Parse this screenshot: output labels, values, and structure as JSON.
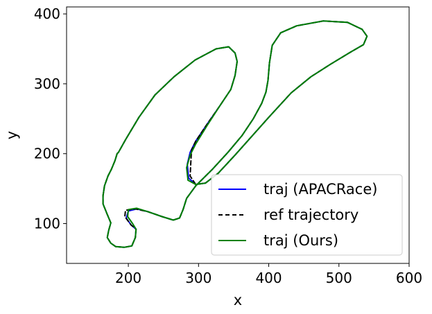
{
  "chart_data": {
    "type": "line",
    "title": "",
    "xlabel": "x",
    "ylabel": "y",
    "xlim": [
      112,
      600
    ],
    "ylim": [
      43,
      410
    ],
    "xticks": [
      200,
      300,
      400,
      500,
      600
    ],
    "yticks": [
      100,
      200,
      300,
      400
    ],
    "grid": false,
    "legend_position": "lower-right",
    "colors": {
      "apacrace": "#0000ff",
      "ref": "#000000",
      "ours": "#008000"
    },
    "series": [
      {
        "name": "traj (APACRace)",
        "style": "solid",
        "color": "#0000ff",
        "points": [
          [
            184,
            200
          ],
          [
            181,
            190
          ],
          [
            176,
            178
          ],
          [
            171,
            168
          ],
          [
            166,
            154
          ],
          [
            164,
            140
          ],
          [
            164,
            128
          ],
          [
            170,
            113
          ],
          [
            175,
            101
          ],
          [
            172,
            90
          ],
          [
            170,
            80
          ],
          [
            175,
            72
          ],
          [
            182,
            67
          ],
          [
            194,
            66
          ],
          [
            205,
            68
          ],
          [
            210,
            80
          ],
          [
            211,
            92
          ],
          [
            204,
            98
          ],
          [
            197,
            108
          ],
          [
            200,
            118
          ],
          [
            212,
            121
          ],
          [
            228,
            117
          ],
          [
            248,
            110
          ],
          [
            264,
            105
          ],
          [
            273,
            108
          ],
          [
            278,
            120
          ],
          [
            283,
            136
          ],
          [
            296,
            154
          ],
          [
            320,
            178
          ],
          [
            342,
            202
          ],
          [
            362,
            226
          ],
          [
            378,
            250
          ],
          [
            390,
            272
          ],
          [
            396,
            288
          ],
          [
            399,
            305
          ],
          [
            401,
            330
          ],
          [
            405,
            355
          ],
          [
            417,
            373
          ],
          [
            440,
            383
          ],
          [
            478,
            390
          ],
          [
            512,
            388
          ],
          [
            533,
            378
          ],
          [
            540,
            368
          ],
          [
            535,
            356
          ],
          [
            516,
            345
          ],
          [
            488,
            328
          ],
          [
            460,
            310
          ],
          [
            432,
            287
          ],
          [
            400,
            252
          ],
          [
            352,
            198
          ],
          [
            328,
            172
          ],
          [
            310,
            158
          ],
          [
            296,
            156
          ],
          [
            286,
            165
          ],
          [
            284,
            185
          ],
          [
            288,
            202
          ],
          [
            296,
            218
          ],
          [
            312,
            242
          ],
          [
            330,
            268
          ],
          [
            346,
            292
          ],
          [
            352,
            312
          ],
          [
            355,
            332
          ],
          [
            352,
            344
          ],
          [
            343,
            353
          ],
          [
            325,
            350
          ],
          [
            295,
            334
          ],
          [
            265,
            310
          ],
          [
            238,
            284
          ],
          [
            215,
            252
          ],
          [
            196,
            220
          ],
          [
            186,
            202
          ],
          [
            184,
            200
          ]
        ]
      },
      {
        "name": "ref trajectory",
        "style": "dashed",
        "color": "#000000",
        "points": [
          [
            184,
            200
          ],
          [
            181,
            190
          ],
          [
            176,
            178
          ],
          [
            171,
            168
          ],
          [
            166,
            154
          ],
          [
            164,
            140
          ],
          [
            164,
            128
          ],
          [
            170,
            113
          ],
          [
            175,
            101
          ],
          [
            172,
            90
          ],
          [
            170,
            80
          ],
          [
            175,
            72
          ],
          [
            182,
            67
          ],
          [
            194,
            66
          ],
          [
            205,
            68
          ],
          [
            210,
            80
          ],
          [
            211,
            92
          ],
          [
            204,
            98
          ],
          [
            195,
            110
          ],
          [
            196,
            119
          ],
          [
            210,
            121
          ],
          [
            228,
            117
          ],
          [
            248,
            110
          ],
          [
            264,
            105
          ],
          [
            273,
            108
          ],
          [
            278,
            120
          ],
          [
            283,
            136
          ],
          [
            296,
            154
          ],
          [
            320,
            178
          ],
          [
            342,
            202
          ],
          [
            362,
            226
          ],
          [
            378,
            250
          ],
          [
            390,
            272
          ],
          [
            396,
            288
          ],
          [
            399,
            305
          ],
          [
            401,
            330
          ],
          [
            405,
            355
          ],
          [
            417,
            373
          ],
          [
            440,
            383
          ],
          [
            478,
            390
          ],
          [
            512,
            388
          ],
          [
            533,
            378
          ],
          [
            540,
            368
          ],
          [
            535,
            356
          ],
          [
            516,
            345
          ],
          [
            488,
            328
          ],
          [
            460,
            310
          ],
          [
            432,
            287
          ],
          [
            400,
            252
          ],
          [
            352,
            198
          ],
          [
            328,
            172
          ],
          [
            310,
            158
          ],
          [
            296,
            156
          ],
          [
            288,
            168
          ],
          [
            289,
            188
          ],
          [
            290,
            205
          ],
          [
            296,
            218
          ],
          [
            312,
            242
          ],
          [
            330,
            268
          ],
          [
            346,
            292
          ],
          [
            352,
            312
          ],
          [
            355,
            332
          ],
          [
            352,
            344
          ],
          [
            343,
            353
          ],
          [
            325,
            350
          ],
          [
            295,
            334
          ],
          [
            265,
            310
          ],
          [
            238,
            284
          ],
          [
            215,
            252
          ],
          [
            196,
            220
          ],
          [
            186,
            202
          ],
          [
            184,
            200
          ]
        ]
      },
      {
        "name": "traj (Ours)",
        "style": "solid",
        "color": "#008000",
        "points": [
          [
            184,
            200
          ],
          [
            181,
            190
          ],
          [
            176,
            178
          ],
          [
            171,
            168
          ],
          [
            166,
            154
          ],
          [
            164,
            140
          ],
          [
            164,
            128
          ],
          [
            170,
            113
          ],
          [
            175,
            101
          ],
          [
            172,
            90
          ],
          [
            170,
            80
          ],
          [
            175,
            72
          ],
          [
            182,
            67
          ],
          [
            194,
            66
          ],
          [
            205,
            68
          ],
          [
            210,
            80
          ],
          [
            211,
            92
          ],
          [
            206,
            100
          ],
          [
            199,
            110
          ],
          [
            200,
            120
          ],
          [
            212,
            122
          ],
          [
            228,
            117
          ],
          [
            248,
            110
          ],
          [
            264,
            105
          ],
          [
            273,
            108
          ],
          [
            278,
            120
          ],
          [
            283,
            136
          ],
          [
            296,
            154
          ],
          [
            320,
            178
          ],
          [
            342,
            202
          ],
          [
            362,
            226
          ],
          [
            378,
            250
          ],
          [
            390,
            272
          ],
          [
            396,
            288
          ],
          [
            399,
            305
          ],
          [
            401,
            330
          ],
          [
            405,
            355
          ],
          [
            417,
            373
          ],
          [
            440,
            383
          ],
          [
            478,
            390
          ],
          [
            512,
            388
          ],
          [
            533,
            378
          ],
          [
            540,
            368
          ],
          [
            535,
            356
          ],
          [
            516,
            345
          ],
          [
            488,
            328
          ],
          [
            460,
            310
          ],
          [
            432,
            287
          ],
          [
            400,
            252
          ],
          [
            352,
            198
          ],
          [
            328,
            172
          ],
          [
            310,
            158
          ],
          [
            296,
            156
          ],
          [
            285,
            162
          ],
          [
            283,
            180
          ],
          [
            288,
            198
          ],
          [
            296,
            214
          ],
          [
            312,
            240
          ],
          [
            330,
            268
          ],
          [
            346,
            292
          ],
          [
            352,
            312
          ],
          [
            355,
            332
          ],
          [
            352,
            344
          ],
          [
            343,
            353
          ],
          [
            325,
            350
          ],
          [
            295,
            334
          ],
          [
            265,
            310
          ],
          [
            238,
            284
          ],
          [
            215,
            252
          ],
          [
            196,
            220
          ],
          [
            186,
            202
          ],
          [
            184,
            200
          ]
        ]
      }
    ]
  }
}
